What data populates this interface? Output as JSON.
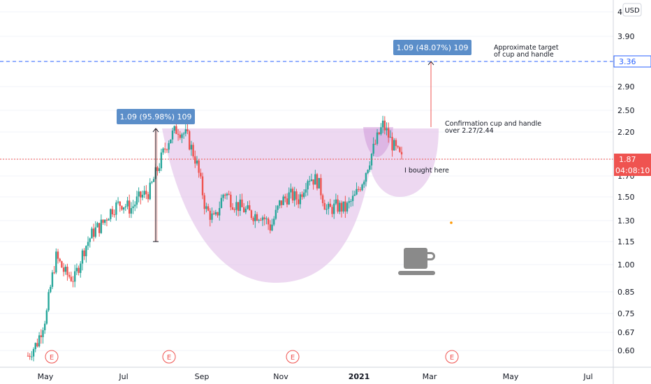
{
  "chart_data": {
    "type": "candlestick",
    "currency": "USD",
    "y_axis_labels": [
      "4.",
      "3.90",
      "3.36",
      "2.90",
      "2.50",
      "2.20",
      "1.87",
      "1.70",
      "1.50",
      "1.30",
      "1.15",
      "1.00",
      "0.85",
      "0.75",
      "0.67",
      "0.60"
    ],
    "x_axis_labels": [
      "May",
      "Jul",
      "Sep",
      "Nov",
      "2021",
      "Mar",
      "May",
      "Jul"
    ],
    "price_tag": "1.87",
    "countdown_tag": "04:08:10",
    "target_tag": "3.36",
    "earnings_marker": "E",
    "annotations": {
      "measure_left": "1.09 (95.98%) 109",
      "measure_right": "1.09 (48.07%) 109",
      "target_line1": "Approximate target",
      "target_line2": "of cup and handle",
      "confirm_line1": "Confirmation cup and handle",
      "confirm_line2": " over 2.27/2.44",
      "bought": "I bought here"
    },
    "ohlc_sample": [
      {
        "t": "2020-04-27",
        "c": 0.58
      },
      {
        "t": "2020-05-04",
        "c": 0.63
      },
      {
        "t": "2020-05-11",
        "c": 0.75
      },
      {
        "t": "2020-05-18",
        "c": 1.05
      },
      {
        "t": "2020-05-25",
        "c": 0.95
      },
      {
        "t": "2020-06-01",
        "c": 0.92
      },
      {
        "t": "2020-06-08",
        "c": 1.1
      },
      {
        "t": "2020-06-15",
        "c": 1.22
      },
      {
        "t": "2020-06-22",
        "c": 1.28
      },
      {
        "t": "2020-06-29",
        "c": 1.4
      },
      {
        "t": "2020-07-06",
        "c": 1.45
      },
      {
        "t": "2020-07-13",
        "c": 1.4
      },
      {
        "t": "2020-07-20",
        "c": 1.5
      },
      {
        "t": "2020-07-27",
        "c": 1.55
      },
      {
        "t": "2020-08-03",
        "c": 1.8
      },
      {
        "t": "2020-08-10",
        "c": 2.1
      },
      {
        "t": "2020-08-17",
        "c": 2.25
      },
      {
        "t": "2020-08-24",
        "c": 2.15
      },
      {
        "t": "2020-08-31",
        "c": 1.85
      },
      {
        "t": "2020-09-07",
        "c": 1.4
      },
      {
        "t": "2020-09-14",
        "c": 1.3
      },
      {
        "t": "2020-09-21",
        "c": 1.55
      },
      {
        "t": "2020-09-28",
        "c": 1.45
      },
      {
        "t": "2020-10-05",
        "c": 1.4
      },
      {
        "t": "2020-10-12",
        "c": 1.35
      },
      {
        "t": "2020-10-19",
        "c": 1.35
      },
      {
        "t": "2020-10-26",
        "c": 1.25
      },
      {
        "t": "2020-11-02",
        "c": 1.45
      },
      {
        "t": "2020-11-09",
        "c": 1.52
      },
      {
        "t": "2020-11-16",
        "c": 1.48
      },
      {
        "t": "2020-11-23",
        "c": 1.7
      },
      {
        "t": "2020-11-30",
        "c": 1.65
      },
      {
        "t": "2020-12-07",
        "c": 1.38
      },
      {
        "t": "2020-12-14",
        "c": 1.42
      },
      {
        "t": "2020-12-21",
        "c": 1.4
      },
      {
        "t": "2020-12-28",
        "c": 1.5
      },
      {
        "t": "2021-01-04",
        "c": 1.7
      },
      {
        "t": "2021-01-11",
        "c": 2.0
      },
      {
        "t": "2021-01-18",
        "c": 2.3
      },
      {
        "t": "2021-01-25",
        "c": 2.05
      },
      {
        "t": "2021-02-01",
        "c": 1.87
      }
    ],
    "colors": {
      "up": "#26a69a",
      "down": "#ef5350",
      "cup_fill": "#e1bee7",
      "measure_box": "#5b8ec9",
      "target_line": "#2962ff",
      "price_line": "#ef5350",
      "cup_icon": "#808080"
    }
  }
}
